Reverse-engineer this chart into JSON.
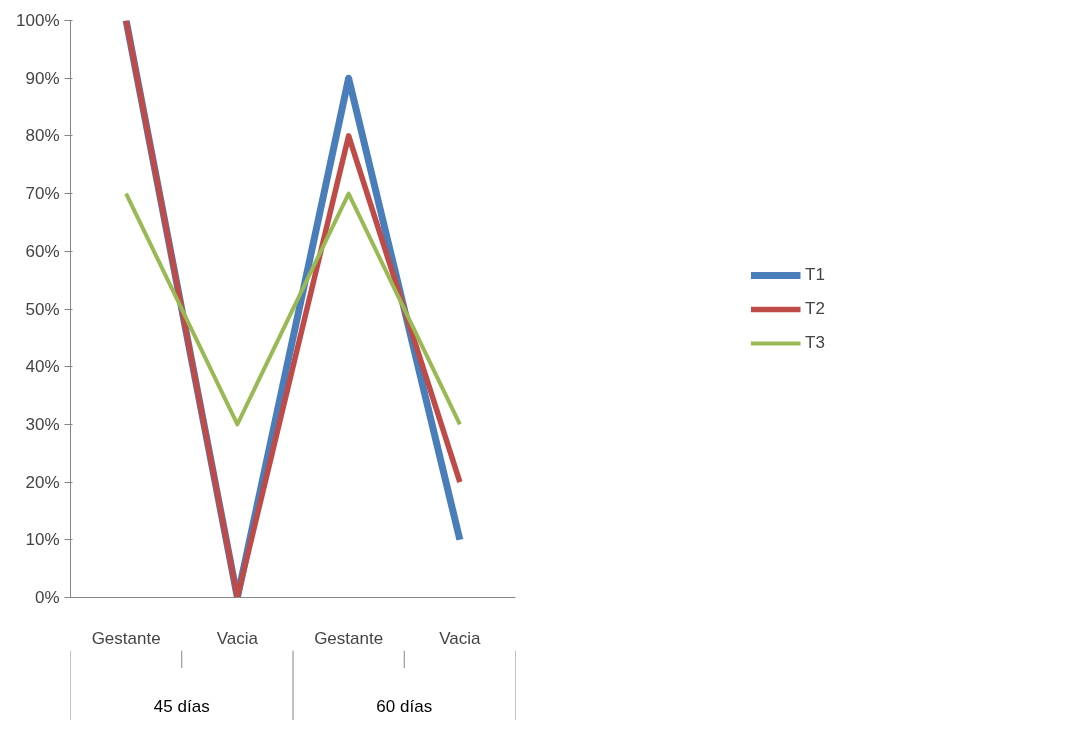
{
  "chart_data": {
    "type": "line",
    "categories": [
      "Gestante",
      "Vacia",
      "Gestante",
      "Vacia"
    ],
    "annotations": [
      "45 días",
      "60 días"
    ],
    "series": [
      {
        "name": "T1",
        "color": "#4a7ebb",
        "values": [
          100,
          0,
          90,
          10
        ]
      },
      {
        "name": "T2",
        "color": "#be4b48",
        "values": [
          100,
          0,
          80,
          20
        ]
      },
      {
        "name": "T3",
        "color": "#98b954",
        "values": [
          70,
          30,
          70,
          30
        ]
      }
    ],
    "ylim": [
      0,
      100
    ],
    "yticks": [
      {
        "value": 0,
        "label": "0%"
      },
      {
        "value": 10,
        "label": "10%"
      },
      {
        "value": 20,
        "label": "20%"
      },
      {
        "value": 30,
        "label": "30%"
      },
      {
        "value": 40,
        "label": "40%"
      },
      {
        "value": 50,
        "label": "50%"
      },
      {
        "value": 60,
        "label": "60%"
      },
      {
        "value": 70,
        "label": "70%"
      },
      {
        "value": 80,
        "label": "80%"
      },
      {
        "value": 90,
        "label": "90%"
      },
      {
        "value": 100,
        "label": "100%"
      }
    ],
    "grid": false,
    "legend": "right",
    "marker": "none",
    "line_style": "solid"
  }
}
